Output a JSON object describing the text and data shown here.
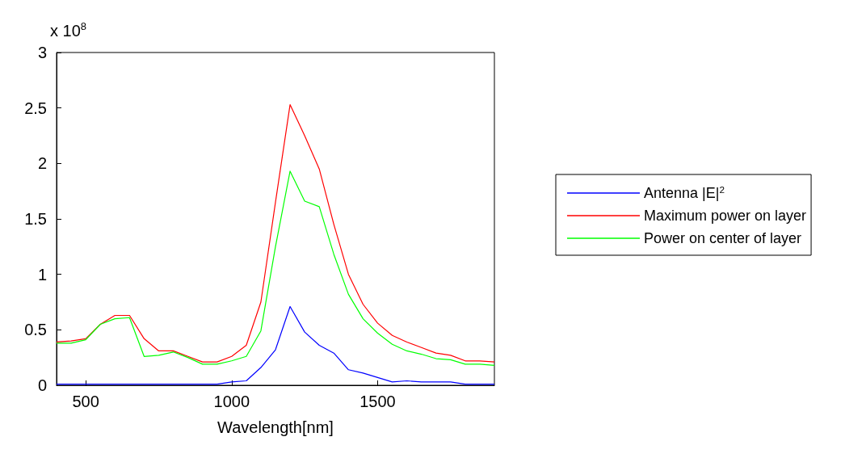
{
  "chart_data": {
    "type": "line",
    "xlabel": "Wavelength[nm]",
    "annotations": [
      "x 10$^{8}$"
    ],
    "x": [
      400,
      450,
      500,
      550,
      600,
      650,
      700,
      750,
      800,
      850,
      900,
      950,
      1000,
      1050,
      1100,
      1150,
      1200,
      1250,
      1300,
      1350,
      1400,
      1450,
      1500,
      1550,
      1600,
      1650,
      1700,
      1750,
      1800,
      1850,
      1900
    ],
    "xlim": [
      400,
      1900
    ],
    "xticks": [
      500,
      1000,
      1500
    ],
    "ylim": [
      0,
      3
    ],
    "yticks": [
      0,
      0.5,
      1,
      1.5,
      2,
      2.5,
      3
    ],
    "grid": false,
    "legend": "right",
    "marker": "none",
    "line_style": "solid",
    "series": [
      {
        "name": "Antenna |E|$^{2}$",
        "color": "#0000ff",
        "values": [
          0.01,
          0.01,
          0.01,
          0.01,
          0.01,
          0.01,
          0.01,
          0.01,
          0.01,
          0.01,
          0.01,
          0.01,
          0.03,
          0.04,
          0.16,
          0.32,
          0.71,
          0.48,
          0.36,
          0.29,
          0.14,
          0.11,
          0.07,
          0.03,
          0.04,
          0.03,
          0.03,
          0.03,
          0.01,
          0.01,
          0.01
        ]
      },
      {
        "name": "Maximum power on layer",
        "color": "#ff0000",
        "values": [
          0.39,
          0.4,
          0.42,
          0.55,
          0.63,
          0.63,
          0.42,
          0.31,
          0.31,
          0.26,
          0.21,
          0.21,
          0.26,
          0.36,
          0.75,
          1.65,
          2.53,
          2.25,
          1.95,
          1.45,
          1.0,
          0.73,
          0.56,
          0.45,
          0.39,
          0.34,
          0.29,
          0.27,
          0.22,
          0.22,
          0.21
        ]
      },
      {
        "name": "Power on center of layer",
        "color": "#00ff00",
        "values": [
          0.38,
          0.38,
          0.41,
          0.55,
          0.6,
          0.61,
          0.26,
          0.27,
          0.3,
          0.25,
          0.19,
          0.19,
          0.22,
          0.26,
          0.49,
          1.25,
          1.93,
          1.66,
          1.61,
          1.18,
          0.82,
          0.6,
          0.47,
          0.37,
          0.31,
          0.28,
          0.24,
          0.23,
          0.19,
          0.19,
          0.18
        ]
      }
    ]
  }
}
